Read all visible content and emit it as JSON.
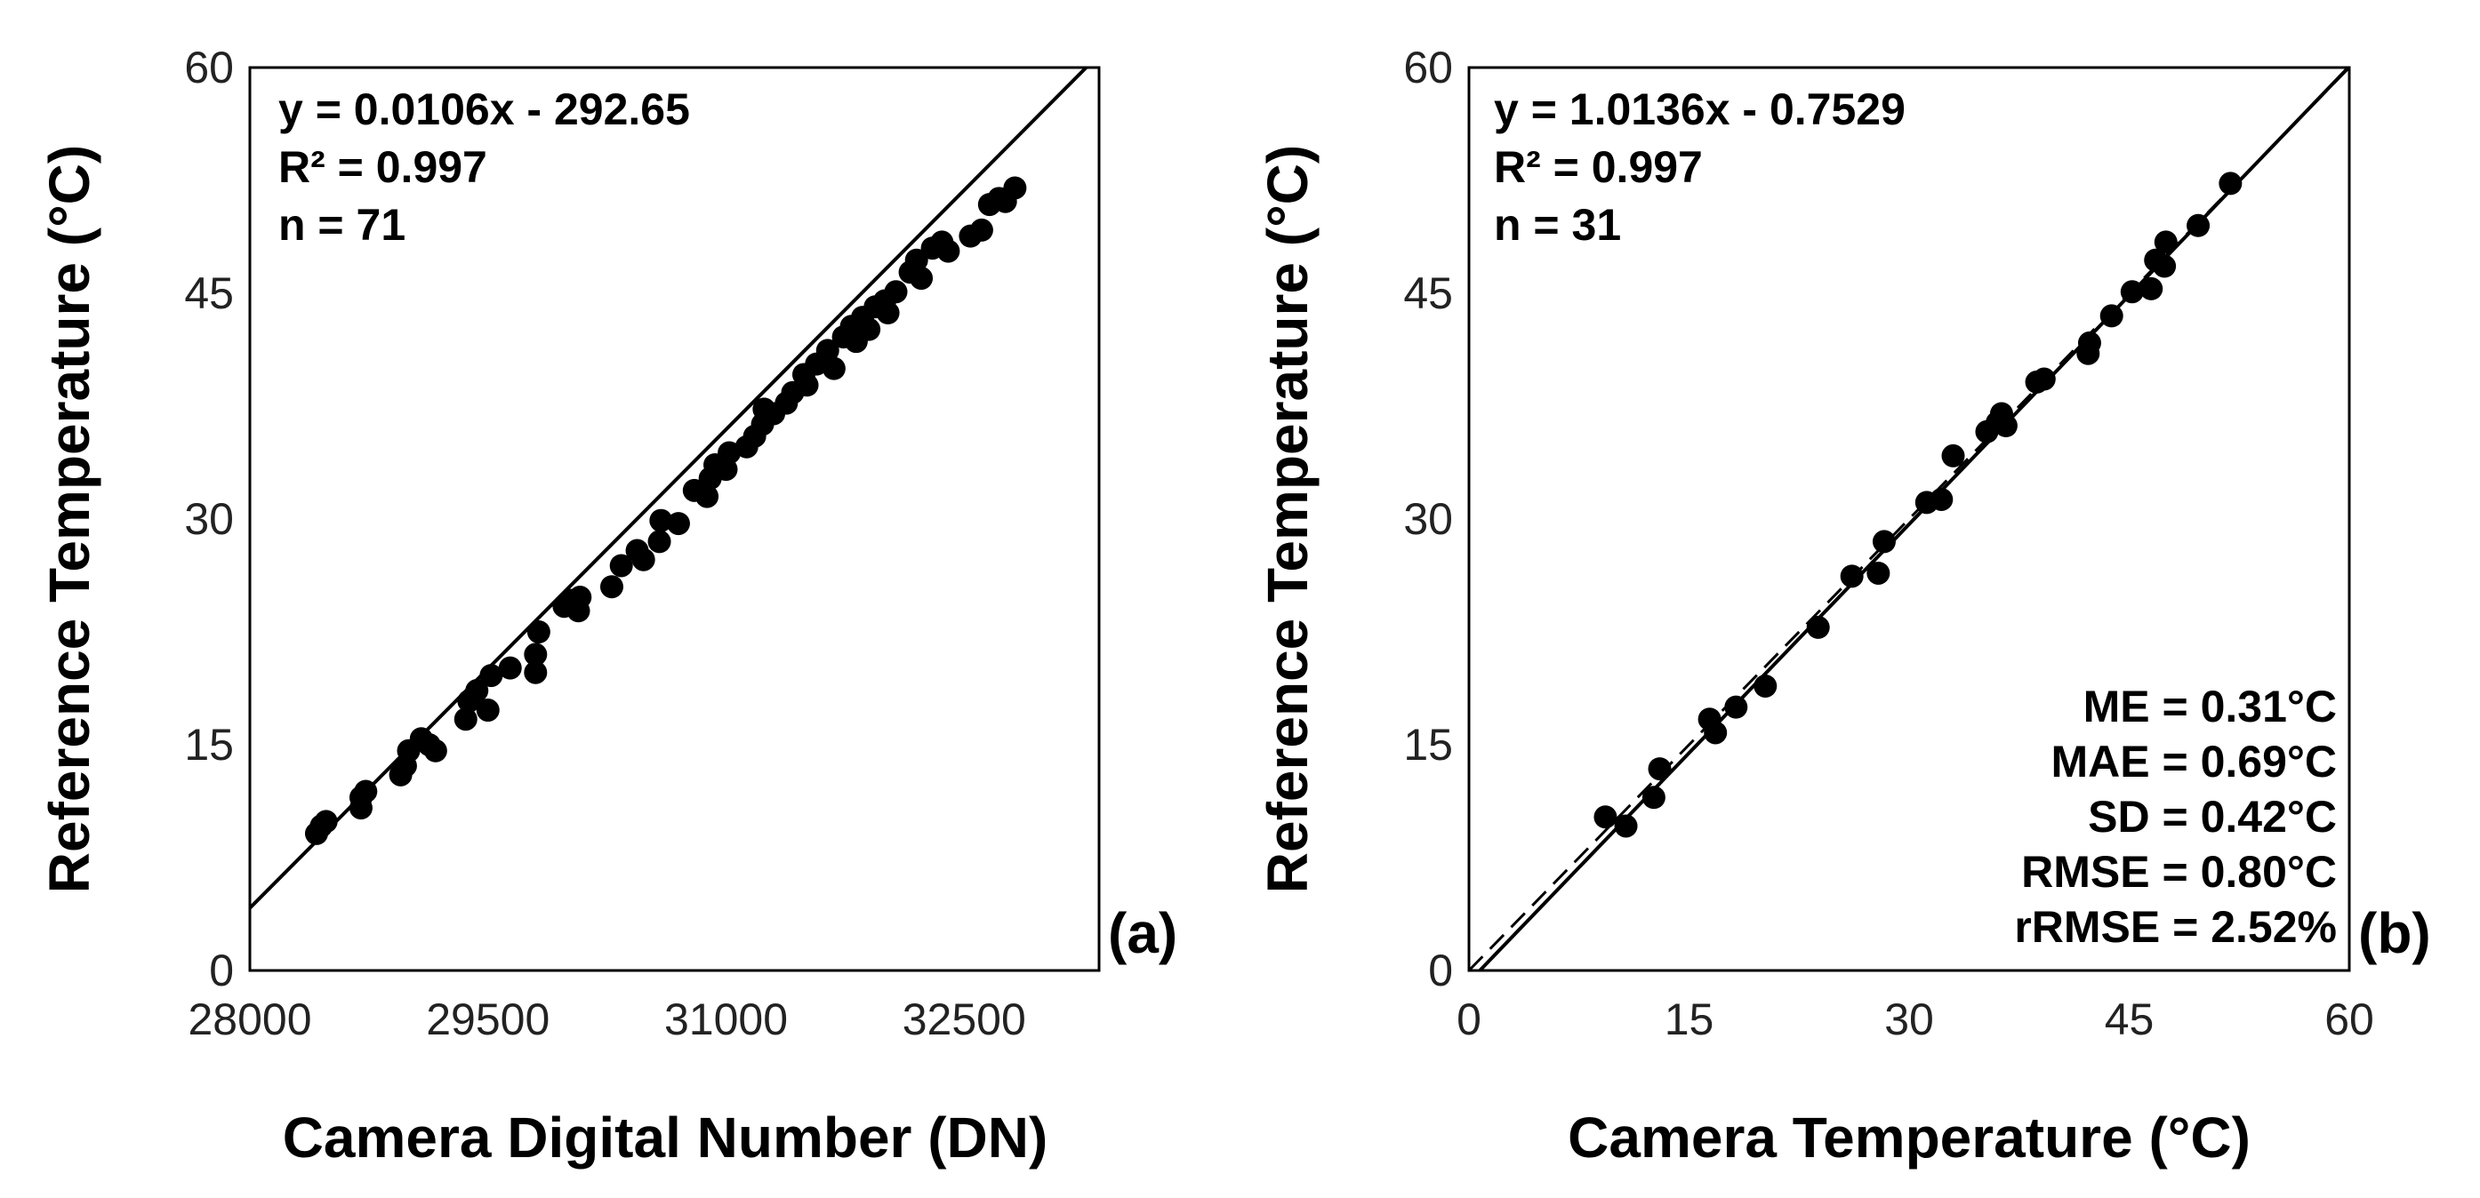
{
  "chart_data": [
    {
      "type": "scatter",
      "panel_label": "(a)",
      "xlabel": "Camera Digital Number (DN)",
      "ylabel": "Reference Temperature (°C)",
      "xlim": [
        28000,
        33350
      ],
      "ylim": [
        0,
        60
      ],
      "xticks": [
        "28000",
        "29500",
        "31000",
        "32500"
      ],
      "xtick_values": [
        28000,
        29500,
        31000,
        32500
      ],
      "yticks": [
        "0",
        "15",
        "30",
        "45",
        "60"
      ],
      "ytick_values": [
        0,
        15,
        30,
        45,
        60
      ],
      "grid": false,
      "annotations": [
        "y = 0.0106x  - 292.65",
        "R² = 0.997",
        "n = 71"
      ],
      "fit_lines": [
        {
          "style": "solid",
          "slope": 0.0106,
          "intercept": -292.65
        }
      ],
      "points": [
        [
          28420,
          9.1
        ],
        [
          28450,
          9.6
        ],
        [
          28480,
          9.9
        ],
        [
          28700,
          10.8
        ],
        [
          28700,
          11.5
        ],
        [
          28730,
          11.9
        ],
        [
          28950,
          13.0
        ],
        [
          28980,
          13.6
        ],
        [
          29000,
          14.6
        ],
        [
          29080,
          15.4
        ],
        [
          29130,
          15.0
        ],
        [
          29170,
          14.6
        ],
        [
          29360,
          16.7
        ],
        [
          29380,
          17.9
        ],
        [
          29430,
          18.6
        ],
        [
          29500,
          17.3
        ],
        [
          29520,
          19.6
        ],
        [
          29640,
          20.1
        ],
        [
          29800,
          19.8
        ],
        [
          29800,
          21.0
        ],
        [
          29820,
          22.5
        ],
        [
          29980,
          24.2
        ],
        [
          30020,
          24.6
        ],
        [
          30070,
          23.9
        ],
        [
          30080,
          24.8
        ],
        [
          30280,
          25.5
        ],
        [
          30340,
          26.9
        ],
        [
          30440,
          27.9
        ],
        [
          30480,
          27.3
        ],
        [
          30580,
          28.5
        ],
        [
          30590,
          29.9
        ],
        [
          30700,
          29.7
        ],
        [
          30800,
          31.9
        ],
        [
          30880,
          31.5
        ],
        [
          30900,
          32.7
        ],
        [
          30930,
          33.6
        ],
        [
          31000,
          33.3
        ],
        [
          31020,
          34.4
        ],
        [
          31130,
          34.8
        ],
        [
          31180,
          35.5
        ],
        [
          31230,
          36.3
        ],
        [
          31240,
          37.3
        ],
        [
          31300,
          37.0
        ],
        [
          31380,
          37.7
        ],
        [
          31420,
          38.4
        ],
        [
          31490,
          39.6
        ],
        [
          31510,
          38.9
        ],
        [
          31570,
          40.3
        ],
        [
          31640,
          41.2
        ],
        [
          31680,
          40.0
        ],
        [
          31740,
          42.1
        ],
        [
          31790,
          42.8
        ],
        [
          31820,
          41.8
        ],
        [
          31860,
          43.4
        ],
        [
          31900,
          42.6
        ],
        [
          31940,
          44.1
        ],
        [
          32000,
          44.5
        ],
        [
          32020,
          43.7
        ],
        [
          32070,
          45.1
        ],
        [
          32160,
          46.4
        ],
        [
          32200,
          47.2
        ],
        [
          32230,
          46.0
        ],
        [
          32300,
          48.0
        ],
        [
          32360,
          48.4
        ],
        [
          32400,
          47.8
        ],
        [
          32540,
          48.8
        ],
        [
          32610,
          49.2
        ],
        [
          32660,
          50.9
        ],
        [
          32720,
          51.3
        ],
        [
          32760,
          51.1
        ],
        [
          32820,
          52.0
        ]
      ]
    },
    {
      "type": "scatter",
      "panel_label": "(b)",
      "xlabel": "Camera Temperature (°C)",
      "ylabel": "Reference Temperature (°C)",
      "xlim": [
        0,
        60
      ],
      "ylim": [
        0,
        60
      ],
      "xticks": [
        "0",
        "15",
        "30",
        "45",
        "60"
      ],
      "xtick_values": [
        0,
        15,
        30,
        45,
        60
      ],
      "yticks": [
        "0",
        "15",
        "30",
        "45",
        "60"
      ],
      "ytick_values": [
        0,
        15,
        30,
        45,
        60
      ],
      "grid": false,
      "annotations": [
        "y = 1.0136x  - 0.7529",
        "R² = 0.997",
        "n = 31"
      ],
      "error_stats": [
        "ME = 0.31°C",
        "MAE = 0.69°C",
        "SD = 0.42°C",
        "RMSE = 0.80°C",
        "rRMSE = 2.52%"
      ],
      "fit_lines": [
        {
          "style": "solid",
          "slope": 1.0136,
          "intercept": -0.7529
        },
        {
          "style": "dashed",
          "slope": 1.0,
          "intercept": 0.0
        }
      ],
      "points": [
        [
          9.3,
          10.2
        ],
        [
          10.7,
          9.6
        ],
        [
          12.6,
          11.5
        ],
        [
          13.0,
          13.4
        ],
        [
          16.4,
          16.7
        ],
        [
          16.8,
          15.8
        ],
        [
          18.2,
          17.5
        ],
        [
          20.2,
          18.9
        ],
        [
          23.8,
          22.8
        ],
        [
          26.1,
          26.2
        ],
        [
          27.9,
          26.4
        ],
        [
          28.3,
          28.5
        ],
        [
          31.2,
          31.1
        ],
        [
          32.2,
          31.3
        ],
        [
          33.0,
          34.2
        ],
        [
          35.3,
          35.8
        ],
        [
          36.0,
          36.4
        ],
        [
          36.3,
          37.0
        ],
        [
          36.6,
          36.2
        ],
        [
          38.7,
          39.1
        ],
        [
          39.2,
          39.3
        ],
        [
          42.2,
          41.0
        ],
        [
          42.3,
          41.7
        ],
        [
          43.8,
          43.5
        ],
        [
          45.2,
          45.1
        ],
        [
          46.5,
          45.3
        ],
        [
          46.8,
          47.2
        ],
        [
          47.4,
          46.8
        ],
        [
          47.5,
          48.4
        ],
        [
          49.7,
          49.5
        ],
        [
          51.9,
          52.3
        ]
      ]
    }
  ]
}
